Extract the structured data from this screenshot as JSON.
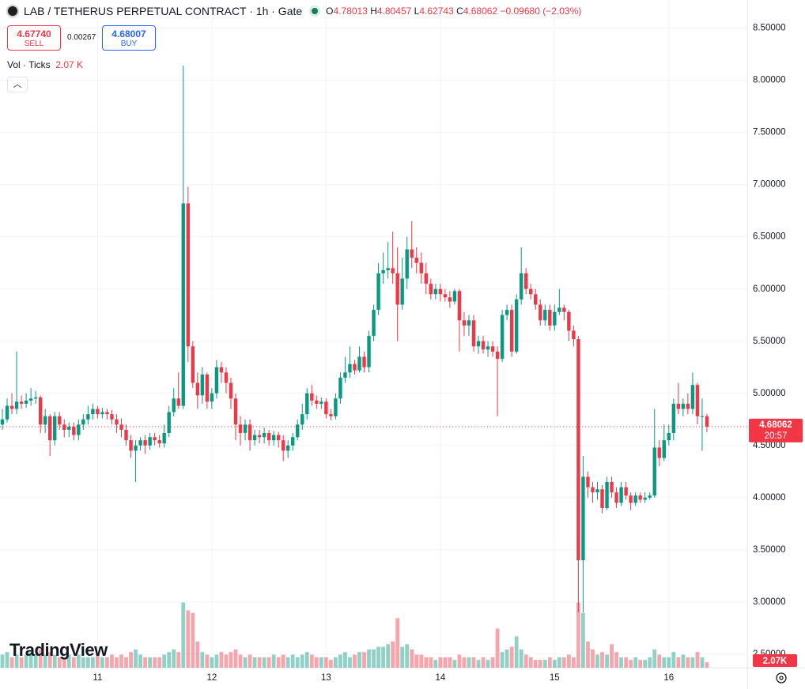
{
  "chart_data": {
    "type": "candlestick",
    "title": "LAB / TETHERUS PERPETUAL CONTRACT · 1h · Gate",
    "ohlc_legend_labels": [
      "O",
      "H",
      "L",
      "C"
    ],
    "change": "−0.09680 (−2.03%)",
    "trade": {
      "sell_price": "4.67740",
      "sell_label": "SELL",
      "spread": "0.00267",
      "buy_price": "4.68007",
      "buy_label": "BUY"
    },
    "countdown": "20:57",
    "branding": "TradingView",
    "colors": {
      "up": "#089981",
      "down": "#f23645"
    },
    "grid": true,
    "ylim": [
      2.37,
      8.77
    ],
    "yticks": [
      {
        "value": 2.5,
        "label": "2.50000"
      },
      {
        "value": 3,
        "label": "3.00000"
      },
      {
        "value": 3.5,
        "label": "3.50000"
      },
      {
        "value": 4,
        "label": "4.00000"
      },
      {
        "value": 4.5,
        "label": "4.50000"
      },
      {
        "value": 5,
        "label": "5.00000"
      },
      {
        "value": 5.5,
        "label": "5.50000"
      },
      {
        "value": 6,
        "label": "6.00000"
      },
      {
        "value": 6.5,
        "label": "6.50000"
      },
      {
        "value": 7,
        "label": "7.00000"
      },
      {
        "value": 7.5,
        "label": "7.50000"
      },
      {
        "value": 8,
        "label": "8.00000"
      },
      {
        "value": 8.5,
        "label": "8.50000"
      }
    ],
    "categories": [
      null,
      null,
      null,
      null,
      null,
      null,
      null,
      null,
      null,
      null,
      null,
      null,
      null,
      null,
      null,
      null,
      null,
      null,
      null,
      null,
      "11",
      null,
      null,
      null,
      null,
      null,
      null,
      null,
      null,
      null,
      null,
      null,
      null,
      null,
      null,
      null,
      null,
      null,
      null,
      null,
      null,
      null,
      null,
      null,
      "12",
      null,
      null,
      null,
      null,
      null,
      null,
      null,
      null,
      null,
      null,
      null,
      null,
      null,
      null,
      null,
      null,
      null,
      null,
      null,
      null,
      null,
      null,
      null,
      "13",
      null,
      null,
      null,
      null,
      null,
      null,
      null,
      null,
      null,
      null,
      null,
      null,
      null,
      null,
      null,
      null,
      null,
      null,
      null,
      null,
      null,
      null,
      null,
      "14",
      null,
      null,
      null,
      null,
      null,
      null,
      null,
      null,
      null,
      null,
      null,
      null,
      null,
      null,
      null,
      null,
      null,
      null,
      null,
      null,
      null,
      null,
      null,
      "15",
      null,
      null,
      null,
      null,
      null,
      null,
      null,
      null,
      null,
      null,
      null,
      null,
      null,
      null,
      null,
      null,
      null,
      null,
      null,
      null,
      null,
      null,
      null,
      "16",
      null,
      null,
      null,
      null,
      null,
      null,
      null,
      null
    ],
    "open": [
      4.7,
      4.75,
      4.88,
      4.85,
      4.92,
      4.9,
      4.93,
      4.95,
      4.96,
      4.7,
      4.78,
      4.55,
      4.78,
      4.7,
      4.65,
      4.68,
      4.6,
      4.7,
      4.75,
      4.8,
      4.85,
      4.8,
      4.82,
      4.8,
      4.75,
      4.7,
      4.65,
      4.55,
      4.45,
      4.5,
      4.55,
      4.5,
      4.58,
      4.55,
      4.52,
      4.62,
      4.82,
      4.95,
      4.88,
      6.82,
      5.45,
      5.1,
      4.98,
      5.18,
      4.92,
      5.0,
      5.25,
      5.2,
      5.1,
      4.95,
      4.7,
      4.62,
      4.7,
      4.55,
      4.6,
      4.58,
      4.62,
      4.55,
      4.6,
      4.55,
      4.45,
      4.5,
      4.58,
      4.7,
      4.8,
      5.0,
      4.93,
      4.9,
      4.92,
      4.8,
      4.78,
      4.95,
      5.15,
      5.2,
      5.28,
      5.22,
      5.35,
      5.25,
      5.55,
      5.8,
      6.15,
      6.18,
      6.2,
      6.15,
      5.85,
      6.1,
      6.38,
      6.3,
      6.25,
      6.15,
      6.05,
      5.95,
      6.0,
      5.95,
      5.92,
      5.88,
      5.98,
      5.7,
      5.65,
      5.7,
      5.45,
      5.5,
      5.42,
      5.45,
      5.4,
      5.33,
      5.75,
      5.8,
      5.4,
      5.9,
      6.15,
      6.0,
      5.95,
      5.85,
      5.7,
      5.8,
      5.65,
      5.78,
      5.82,
      5.78,
      5.6,
      5.52,
      3.4,
      4.2,
      4.1,
      4.05,
      4.08,
      3.9,
      4.15,
      4.05,
      3.95,
      4.1,
      4.02,
      3.95,
      4.02,
      3.98,
      4.0,
      4.02,
      4.48,
      4.38,
      4.55,
      4.62,
      4.9,
      4.85,
      4.9,
      4.85,
      5.08,
      4.78,
      4.78013
    ],
    "high": [
      4.85,
      4.95,
      5.0,
      5.4,
      4.98,
      5.0,
      5.05,
      5.02,
      4.98,
      4.85,
      4.8,
      4.82,
      4.82,
      4.75,
      4.72,
      4.72,
      4.75,
      4.8,
      4.88,
      4.9,
      4.88,
      4.86,
      4.85,
      4.84,
      4.8,
      4.76,
      4.7,
      4.6,
      4.55,
      4.58,
      4.6,
      4.62,
      4.62,
      4.6,
      4.7,
      4.88,
      5.05,
      5.2,
      8.14,
      6.98,
      5.5,
      5.2,
      5.25,
      5.2,
      5.05,
      5.32,
      5.3,
      5.25,
      5.15,
      5.0,
      4.78,
      4.75,
      4.75,
      4.65,
      4.65,
      4.67,
      4.65,
      4.64,
      4.63,
      4.6,
      4.55,
      4.62,
      4.75,
      4.9,
      5.05,
      5.08,
      4.98,
      4.96,
      4.95,
      4.85,
      5.0,
      5.2,
      5.35,
      5.45,
      5.32,
      5.45,
      5.4,
      5.6,
      5.85,
      6.25,
      6.35,
      6.45,
      6.55,
      6.4,
      6.3,
      6.5,
      6.65,
      6.4,
      6.35,
      6.25,
      6.1,
      6.05,
      6.05,
      6.0,
      5.98,
      6.0,
      6.0,
      5.78,
      5.75,
      5.75,
      5.55,
      5.55,
      5.5,
      5.5,
      5.45,
      5.8,
      5.85,
      5.85,
      5.95,
      6.4,
      6.2,
      6.05,
      6.0,
      5.9,
      5.85,
      5.85,
      5.85,
      6.0,
      5.85,
      5.8,
      5.65,
      5.55,
      4.4,
      4.25,
      4.15,
      4.15,
      4.12,
      4.2,
      4.2,
      4.1,
      4.15,
      4.15,
      4.05,
      4.05,
      4.05,
      4.05,
      4.05,
      4.85,
      4.55,
      4.7,
      4.7,
      4.95,
      5.1,
      4.95,
      5.0,
      5.2,
      5.1,
      4.95,
      4.80457
    ],
    "low": [
      4.65,
      4.72,
      4.8,
      4.8,
      4.85,
      4.86,
      4.88,
      4.9,
      4.62,
      4.62,
      4.4,
      4.5,
      4.65,
      4.58,
      4.58,
      4.55,
      4.55,
      4.65,
      4.7,
      4.75,
      4.76,
      4.76,
      4.75,
      4.7,
      4.62,
      4.58,
      4.5,
      4.38,
      4.15,
      4.45,
      4.42,
      4.46,
      4.5,
      4.48,
      4.48,
      4.58,
      4.78,
      4.85,
      4.85,
      5.3,
      5.05,
      4.85,
      4.9,
      4.85,
      4.85,
      4.95,
      5.1,
      5.0,
      4.85,
      4.55,
      4.5,
      4.55,
      4.45,
      4.5,
      4.52,
      4.52,
      4.5,
      4.5,
      4.48,
      4.35,
      4.38,
      4.45,
      4.55,
      4.65,
      4.75,
      4.88,
      4.85,
      4.85,
      4.76,
      4.74,
      4.75,
      4.9,
      5.1,
      5.15,
      5.18,
      5.2,
      5.2,
      5.2,
      5.5,
      5.75,
      6.05,
      6.1,
      6.05,
      5.5,
      5.8,
      6.0,
      6.2,
      6.15,
      6.05,
      5.95,
      5.9,
      5.9,
      5.88,
      5.88,
      5.82,
      5.85,
      5.4,
      5.55,
      5.55,
      5.4,
      5.38,
      5.38,
      5.35,
      5.35,
      4.78,
      5.3,
      5.7,
      5.35,
      5.38,
      5.85,
      5.95,
      5.9,
      5.8,
      5.65,
      5.65,
      5.6,
      5.6,
      5.75,
      5.7,
      5.5,
      5.45,
      2.9,
      2.9,
      4.0,
      3.95,
      3.98,
      3.85,
      3.88,
      4.0,
      3.9,
      3.92,
      3.98,
      3.88,
      3.92,
      3.95,
      3.95,
      3.98,
      4.0,
      4.3,
      4.35,
      4.5,
      4.55,
      4.8,
      4.78,
      4.8,
      4.8,
      4.7,
      4.45,
      4.62743
    ],
    "close": [
      4.75,
      4.88,
      4.85,
      4.92,
      4.9,
      4.93,
      4.95,
      4.96,
      4.7,
      4.78,
      4.55,
      4.78,
      4.7,
      4.65,
      4.68,
      4.6,
      4.7,
      4.75,
      4.8,
      4.85,
      4.8,
      4.82,
      4.8,
      4.75,
      4.7,
      4.65,
      4.55,
      4.45,
      4.5,
      4.55,
      4.5,
      4.58,
      4.55,
      4.52,
      4.62,
      4.82,
      4.95,
      4.88,
      6.82,
      5.45,
      5.1,
      4.98,
      5.18,
      4.92,
      5.0,
      5.25,
      5.2,
      5.1,
      4.95,
      4.7,
      4.62,
      4.7,
      4.55,
      4.6,
      4.58,
      4.62,
      4.55,
      4.6,
      4.55,
      4.45,
      4.5,
      4.58,
      4.7,
      4.8,
      5.0,
      4.93,
      4.9,
      4.92,
      4.8,
      4.78,
      4.95,
      5.15,
      5.2,
      5.28,
      5.22,
      5.35,
      5.25,
      5.55,
      5.8,
      6.15,
      6.18,
      6.2,
      6.15,
      5.85,
      6.1,
      6.38,
      6.3,
      6.25,
      6.15,
      6.05,
      5.95,
      6.0,
      5.95,
      5.92,
      5.88,
      5.98,
      5.7,
      5.65,
      5.7,
      5.45,
      5.5,
      5.42,
      5.45,
      5.4,
      5.33,
      5.75,
      5.8,
      5.4,
      5.9,
      6.15,
      6.0,
      5.95,
      5.85,
      5.7,
      5.8,
      5.65,
      5.78,
      5.82,
      5.78,
      5.6,
      5.52,
      3.4,
      4.2,
      4.1,
      4.05,
      4.08,
      3.9,
      4.15,
      4.05,
      3.95,
      4.1,
      4.02,
      3.95,
      4.02,
      3.98,
      4.0,
      4.02,
      4.48,
      4.38,
      4.55,
      4.62,
      4.9,
      4.85,
      4.9,
      4.85,
      5.08,
      4.78,
      4.78,
      4.68062
    ],
    "volume": {
      "name": "Vol · Ticks",
      "legend_value": "2.07 K",
      "axis_label": "2.07K",
      "values": [
        5,
        6,
        4,
        5,
        4,
        5,
        6,
        5,
        7,
        5,
        6,
        5,
        4,
        4,
        5,
        4,
        5,
        4,
        4,
        4,
        5,
        4,
        4,
        5,
        4,
        5,
        4,
        6,
        7,
        5,
        4,
        4,
        4,
        4,
        5,
        6,
        7,
        6,
        25,
        22,
        21,
        10,
        6,
        5,
        4,
        5,
        6,
        5,
        6,
        7,
        5,
        4,
        5,
        4,
        4,
        4,
        4,
        5,
        4,
        5,
        4,
        5,
        4,
        5,
        6,
        5,
        4,
        4,
        4,
        3,
        4,
        5,
        6,
        4,
        5,
        6,
        6,
        7,
        7,
        8,
        8,
        9,
        10,
        19,
        8,
        9,
        7,
        5,
        5,
        4,
        4,
        3,
        4,
        4,
        4,
        3,
        5,
        4,
        4,
        4,
        3,
        4,
        3,
        4,
        15,
        6,
        7,
        8,
        12,
        7,
        5,
        4,
        3,
        3,
        3,
        4,
        3,
        4,
        4,
        5,
        4,
        25,
        21,
        10,
        7,
        5,
        6,
        5,
        9,
        6,
        4,
        4,
        3,
        4,
        3,
        3,
        4,
        7,
        5,
        4,
        4,
        6,
        4,
        5,
        4,
        4,
        6,
        4,
        2.07
      ]
    }
  }
}
